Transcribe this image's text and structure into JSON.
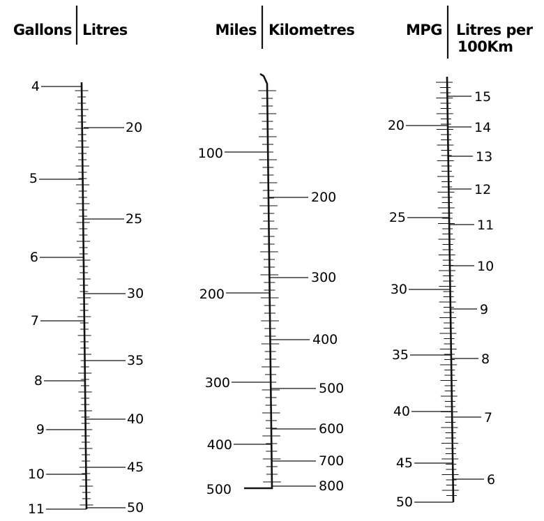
{
  "scales": [
    {
      "left_header": "Gallons",
      "right_header": [
        "Litres"
      ],
      "left_labels": [
        "4",
        "5",
        "6",
        "7",
        "8",
        "9",
        "10",
        "11"
      ],
      "right_labels": [
        "20",
        "25",
        "30",
        "35",
        "40",
        "45",
        "50"
      ]
    },
    {
      "left_header": "Miles",
      "right_header": [
        "Kilometres"
      ],
      "left_labels": [
        "100",
        "200",
        "300",
        "400",
        "500"
      ],
      "right_labels": [
        "200",
        "300",
        "400",
        "500",
        "600",
        "700",
        "800"
      ]
    },
    {
      "left_header": "MPG",
      "right_header": [
        "Litres per",
        "100Km"
      ],
      "left_labels": [
        "20",
        "25",
        "30",
        "35",
        "40",
        "45",
        "50"
      ],
      "right_labels": [
        "15",
        "14",
        "13",
        "12",
        "11",
        "10",
        "9",
        "8",
        "7",
        "6"
      ]
    }
  ]
}
